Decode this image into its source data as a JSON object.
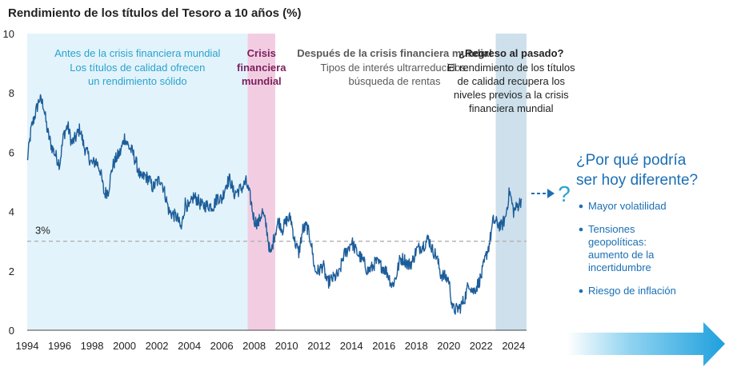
{
  "chart_data": {
    "type": "line",
    "title": "Rendimiento de los títulos del Tesoro a 10 años (%)",
    "xlabel": "",
    "ylabel": "",
    "xlim": [
      1994,
      2024.8
    ],
    "ylim": [
      0,
      10
    ],
    "x_ticks": [
      1994,
      1996,
      1998,
      2000,
      2002,
      2004,
      2006,
      2008,
      2010,
      2012,
      2014,
      2016,
      2018,
      2020,
      2022,
      2024
    ],
    "y_ticks": [
      0,
      2,
      4,
      6,
      8,
      10
    ],
    "grid": false,
    "reference_line": {
      "value": 3,
      "label": "3%"
    },
    "series": [
      {
        "name": "",
        "color": "#1c5d99",
        "x": [
          1994.0,
          1994.25,
          1994.5,
          1994.75,
          1995.0,
          1995.25,
          1995.5,
          1995.75,
          1996.0,
          1996.25,
          1996.5,
          1996.75,
          1997.0,
          1997.25,
          1997.5,
          1997.75,
          1998.0,
          1998.25,
          1998.5,
          1998.75,
          1999.0,
          1999.25,
          1999.5,
          1999.75,
          2000.0,
          2000.25,
          2000.5,
          2000.75,
          2001.0,
          2001.25,
          2001.5,
          2001.75,
          2002.0,
          2002.25,
          2002.5,
          2002.75,
          2003.0,
          2003.25,
          2003.5,
          2003.75,
          2004.0,
          2004.25,
          2004.5,
          2004.75,
          2005.0,
          2005.25,
          2005.5,
          2005.75,
          2006.0,
          2006.25,
          2006.5,
          2006.75,
          2007.0,
          2007.25,
          2007.5,
          2007.75,
          2008.0,
          2008.25,
          2008.5,
          2008.75,
          2009.0,
          2009.25,
          2009.5,
          2009.75,
          2010.0,
          2010.25,
          2010.5,
          2010.75,
          2011.0,
          2011.25,
          2011.5,
          2011.75,
          2012.0,
          2012.25,
          2012.5,
          2012.75,
          2013.0,
          2013.25,
          2013.5,
          2013.75,
          2014.0,
          2014.25,
          2014.5,
          2014.75,
          2015.0,
          2015.25,
          2015.5,
          2015.75,
          2016.0,
          2016.25,
          2016.5,
          2016.75,
          2017.0,
          2017.25,
          2017.5,
          2017.75,
          2018.0,
          2018.25,
          2018.5,
          2018.75,
          2019.0,
          2019.25,
          2019.5,
          2019.75,
          2020.0,
          2020.25,
          2020.5,
          2020.75,
          2021.0,
          2021.25,
          2021.5,
          2021.75,
          2022.0,
          2022.25,
          2022.5,
          2022.75,
          2023.0,
          2023.25,
          2023.5,
          2023.75,
          2024.0,
          2024.25,
          2024.5
        ],
        "values": [
          5.7,
          6.8,
          7.3,
          7.8,
          7.6,
          6.7,
          6.2,
          5.9,
          5.6,
          6.6,
          6.9,
          6.3,
          6.5,
          6.8,
          6.2,
          5.9,
          5.6,
          5.7,
          5.4,
          4.6,
          4.7,
          5.5,
          5.8,
          6.0,
          6.5,
          6.2,
          6.0,
          5.6,
          5.1,
          5.2,
          5.1,
          4.8,
          5.0,
          5.1,
          4.6,
          4.0,
          3.9,
          3.8,
          3.4,
          4.3,
          4.1,
          4.5,
          4.4,
          4.2,
          4.2,
          4.2,
          4.2,
          4.5,
          4.4,
          4.9,
          5.1,
          4.6,
          4.7,
          4.8,
          5.0,
          4.5,
          3.7,
          3.6,
          4.0,
          3.5,
          2.5,
          3.2,
          3.7,
          3.4,
          3.7,
          3.8,
          3.0,
          2.6,
          3.4,
          3.5,
          3.0,
          2.0,
          2.0,
          2.2,
          1.6,
          1.7,
          1.8,
          1.9,
          2.5,
          2.7,
          3.0,
          2.7,
          2.5,
          2.3,
          2.0,
          2.1,
          2.3,
          2.2,
          2.1,
          1.9,
          1.5,
          1.8,
          2.4,
          2.4,
          2.2,
          2.3,
          2.7,
          2.8,
          2.9,
          3.1,
          2.7,
          2.5,
          1.9,
          1.8,
          1.7,
          0.7,
          0.7,
          0.8,
          1.1,
          1.6,
          1.3,
          1.5,
          1.8,
          2.4,
          2.9,
          3.7,
          3.6,
          3.5,
          3.8,
          4.7,
          4.0,
          4.2,
          4.4
        ]
      }
    ],
    "regions": [
      {
        "x0": 1994.0,
        "x1": 2007.6,
        "color": "#e3f3fb",
        "heading": "Antes de la crisis financiera mundial",
        "lines": [
          "Los títulos de calidad ofrecen",
          "un rendimiento sólido"
        ]
      },
      {
        "x0": 2007.6,
        "x1": 2009.3,
        "color": "#f2cde2",
        "heading": "Crisis",
        "lines": [
          "financiera",
          "mundial"
        ]
      },
      {
        "x0": 2009.3,
        "x1": 2022.9,
        "color": "#ffffff",
        "heading": "Después de la crisis financiera mundial",
        "lines": [
          "Tipos de interés ultrarreducidos:",
          "búsqueda de rentas"
        ]
      },
      {
        "x0": 2022.9,
        "x1": 2024.8,
        "color": "#cde0ec",
        "heading": "¿Regreso al pasado?",
        "lines": [
          "El rendimiento de los títulos",
          "de calidad recupera los",
          "niveles previos a la crisis",
          "financiera mundial"
        ]
      }
    ],
    "side_panel": {
      "question_mark": "?",
      "heading_lines": [
        "¿Por qué podría",
        "ser hoy diferente?"
      ],
      "bullets": [
        [
          "Mayor volatilidad"
        ],
        [
          "Tensiones",
          "geopolíticas:",
          "aumento de la",
          "incertidumbre"
        ],
        [
          "Riesgo de inflación"
        ]
      ]
    }
  },
  "colors": {
    "line": "#1c5d99",
    "pre_text": "#29a3cf",
    "crisis_text": "#7b1f5c",
    "post_text": "#5a5a5a",
    "return_text": "#222222",
    "side_text": "#1a6fb5",
    "refline": "#b0b0b0"
  }
}
